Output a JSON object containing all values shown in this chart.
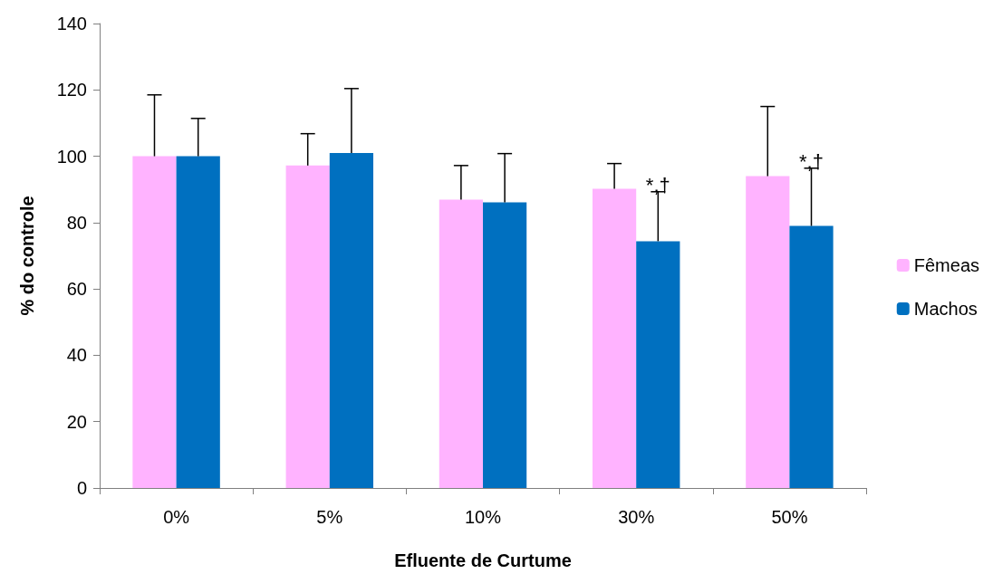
{
  "chart_data": {
    "type": "bar",
    "xlabel": "Efluente de Curtume",
    "ylabel": "% do controle",
    "categories": [
      "0%",
      "5%",
      "10%",
      "30%",
      "50%"
    ],
    "series": [
      {
        "name": "Fêmeas",
        "color": "#ffb3ff",
        "values": [
          100,
          97.2,
          86.9,
          90.2,
          94
        ],
        "errors": [
          [
            100,
            118.5
          ],
          [
            97.2,
            106.8
          ],
          [
            86.9,
            97.2
          ],
          [
            90.2,
            97.8
          ],
          [
            94,
            115
          ]
        ]
      },
      {
        "name": "Machos",
        "color": "#0070c0",
        "values": [
          100,
          101,
          86.1,
          74.4,
          79
        ],
        "errors": [
          [
            100,
            111.4
          ],
          [
            101,
            120.4
          ],
          [
            86.1,
            100.8
          ],
          [
            74.4,
            89.3
          ],
          [
            79,
            96.4
          ]
        ]
      }
    ],
    "annotations": [
      {
        "text": "*,†",
        "x": "30%",
        "y": 74.4
      },
      {
        "text": "*,†",
        "x": "50%",
        "y": 79
      }
    ],
    "ylim": [
      0,
      140
    ],
    "yticks": [
      0,
      20,
      40,
      60,
      80,
      100,
      120,
      140
    ],
    "grid": false,
    "legend": "right"
  }
}
